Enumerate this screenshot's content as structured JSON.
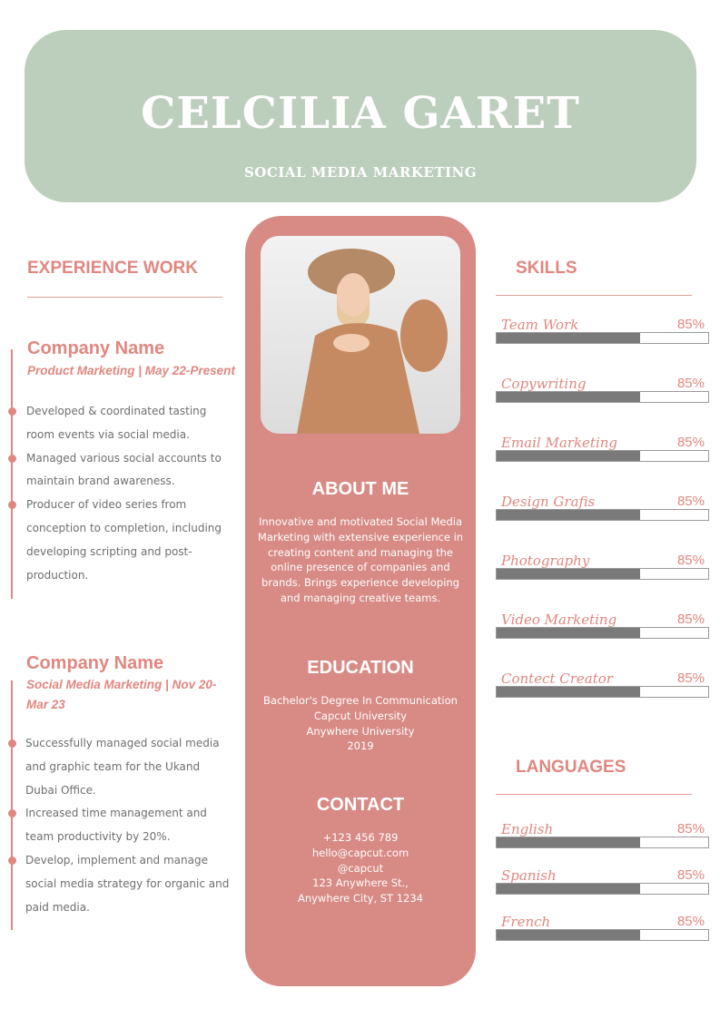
{
  "header": {
    "name": "CELCILIA GARET",
    "role": "SOCIAL MEDIA MARKETING"
  },
  "experience": {
    "title": "EXPERIENCE WORK",
    "jobs": [
      {
        "company": "Company Name",
        "title": "Product Marketing | May 22-Present",
        "bullets": [
          "Developed & coordinated tasting room events via social media.",
          "Managed various social accounts to maintain brand awareness.",
          "Producer of video series from conception to completion, including developing scripting and post-production."
        ]
      },
      {
        "company": "Company Name",
        "title": "Social Media Marketing | Nov 20-Mar 23",
        "bullets": [
          "Successfully managed social media and graphic team for the Ukand Dubai Office.",
          "Increased time management and team productivity by 20%.",
          "Develop, implement and manage social media strategy for organic and paid media."
        ]
      }
    ]
  },
  "about": {
    "title": "ABOUT ME",
    "text": "Innovative and motivated Social Media Marketing with extensive experience in creating content and managing the online presence of companies and brands. Brings experience developing and managing creative teams."
  },
  "education": {
    "title": "EDUCATION",
    "lines": [
      "Bachelor's Degree In Communication",
      "Capcut University",
      "Anywhere University",
      "2019"
    ]
  },
  "contact": {
    "title": "CONTACT",
    "lines": [
      "+123  456 789",
      "hello@capcut.com",
      "@capcut",
      "123 Anywhere St.,",
      "Anywhere City, ST 1234"
    ]
  },
  "skills": {
    "title": "SKILLS",
    "items": [
      {
        "label": "Team Work",
        "pct": "85%",
        "fill": 0.68
      },
      {
        "label": "Copywriting",
        "pct": "85%",
        "fill": 0.68
      },
      {
        "label": "Email Marketing",
        "pct": "85%",
        "fill": 0.68
      },
      {
        "label": "Design Grafis",
        "pct": "85%",
        "fill": 0.68
      },
      {
        "label": "Photography",
        "pct": "85%",
        "fill": 0.68
      },
      {
        "label": "Video Marketing",
        "pct": "85%",
        "fill": 0.68
      },
      {
        "label": "Contect Creator",
        "pct": "85%",
        "fill": 0.68
      }
    ]
  },
  "languages": {
    "title": "LANGUAGES",
    "items": [
      {
        "label": "English",
        "pct": "85%",
        "fill": 0.68
      },
      {
        "label": "Spanish",
        "pct": "85%",
        "fill": 0.68
      },
      {
        "label": "French",
        "pct": "85%",
        "fill": 0.68
      }
    ]
  },
  "colors": {
    "header": "#bccfbc",
    "accent": "#e0877f",
    "panel": "#d88a84",
    "bar": "#7a7a7a"
  }
}
